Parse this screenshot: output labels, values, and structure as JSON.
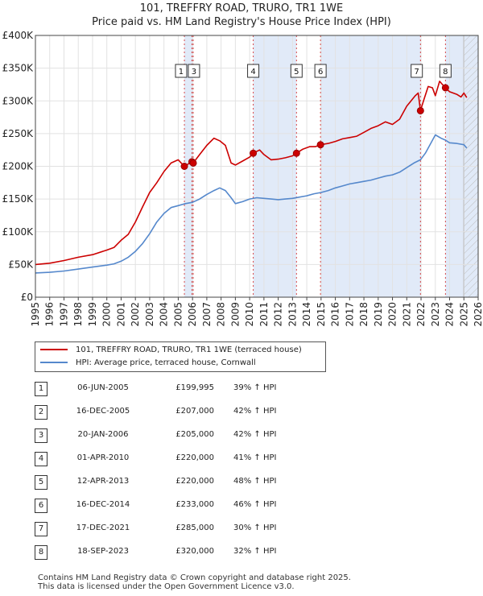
{
  "chart_data": {
    "type": "line",
    "title": "101, TREFFRY ROAD, TRURO, TR1 1WE",
    "subtitle": "Price paid vs. HM Land Registry's House Price Index (HPI)",
    "xlabel": "",
    "ylabel": "",
    "xlim": [
      1995,
      2026
    ],
    "ylim": [
      0,
      400000
    ],
    "yticks": [
      0,
      50000,
      100000,
      150000,
      200000,
      250000,
      300000,
      350000,
      400000
    ],
    "ytick_labels": [
      "£0",
      "£50K",
      "£100K",
      "£150K",
      "£200K",
      "£250K",
      "£300K",
      "£350K",
      "£400K"
    ],
    "xticks": [
      1995,
      1996,
      1997,
      1998,
      1999,
      2000,
      2001,
      2002,
      2003,
      2004,
      2005,
      2006,
      2007,
      2008,
      2009,
      2010,
      2011,
      2012,
      2013,
      2014,
      2015,
      2016,
      2017,
      2018,
      2019,
      2020,
      2021,
      2022,
      2023,
      2024,
      2025,
      2026
    ],
    "xtick_labels": [
      "1995",
      "1996",
      "1997",
      "1998",
      "1999",
      "2000",
      "2001",
      "2002",
      "2003",
      "2004",
      "2005",
      "2006",
      "2007",
      "2008",
      "2009",
      "2010",
      "2011",
      "2012",
      "2013",
      "2014",
      "2015",
      "2016",
      "2017",
      "2018",
      "2019",
      "2020",
      "2021",
      "2022",
      "2023",
      "2024",
      "2025",
      "2026"
    ],
    "grid": true,
    "shaded_periods": [
      [
        2005.43,
        2006.05
      ],
      [
        2010.25,
        2013.28
      ],
      [
        2014.96,
        2021.96
      ],
      [
        2023.71,
        2026.0
      ]
    ],
    "future_hatch_from": 2025.0,
    "series": [
      {
        "name": "101, TREFFRY ROAD, TRURO, TR1 1WE (terraced house)",
        "color": "#cc0000",
        "x": [
          1995.0,
          1996.0,
          1997.0,
          1998.0,
          1999.0,
          2000.0,
          2000.5,
          2001.0,
          2001.5,
          2002.0,
          2002.5,
          2003.0,
          2003.5,
          2004.0,
          2004.5,
          2005.0,
          2005.43,
          2005.96,
          2006.05,
          2006.5,
          2007.0,
          2007.5,
          2007.9,
          2008.3,
          2008.7,
          2009.0,
          2009.5,
          2010.0,
          2010.25,
          2010.7,
          2011.0,
          2011.5,
          2012.0,
          2012.5,
          2013.0,
          2013.28,
          2013.7,
          2014.2,
          2014.6,
          2014.96,
          2015.5,
          2016.0,
          2016.5,
          2017.0,
          2017.5,
          2018.0,
          2018.5,
          2019.0,
          2019.5,
          2020.0,
          2020.5,
          2021.0,
          2021.3,
          2021.6,
          2021.8,
          2021.96,
          2022.2,
          2022.5,
          2022.8,
          2023.0,
          2023.3,
          2023.5,
          2023.71,
          2024.0,
          2024.5,
          2024.8,
          2025.0,
          2025.2
        ],
        "values": [
          50000,
          52000,
          56000,
          61000,
          65000,
          72000,
          76000,
          87000,
          96000,
          115000,
          138000,
          160000,
          175000,
          192000,
          205000,
          210000,
          199995,
          207000,
          205000,
          218000,
          232000,
          243000,
          239000,
          232000,
          205000,
          202000,
          208000,
          214000,
          220000,
          225000,
          218000,
          210000,
          211000,
          213000,
          216000,
          220000,
          226000,
          230000,
          230000,
          233000,
          235000,
          238000,
          242000,
          244000,
          246000,
          252000,
          258000,
          262000,
          268000,
          264000,
          272000,
          292000,
          300000,
          308000,
          312000,
          285000,
          302000,
          322000,
          320000,
          308000,
          330000,
          325000,
          320000,
          314000,
          310000,
          306000,
          312000,
          305000
        ]
      },
      {
        "name": "HPI: Average price, terraced house, Cornwall",
        "color": "#5588cc",
        "x": [
          1995.0,
          1996.0,
          1997.0,
          1998.0,
          1999.0,
          2000.0,
          2000.5,
          2001.0,
          2001.5,
          2002.0,
          2002.5,
          2003.0,
          2003.5,
          2004.0,
          2004.5,
          2005.0,
          2005.5,
          2006.0,
          2006.5,
          2007.0,
          2007.5,
          2007.9,
          2008.3,
          2008.7,
          2009.0,
          2009.5,
          2010.0,
          2010.5,
          2011.0,
          2011.5,
          2012.0,
          2012.5,
          2013.0,
          2013.5,
          2014.0,
          2014.5,
          2015.0,
          2015.5,
          2016.0,
          2016.5,
          2017.0,
          2017.5,
          2018.0,
          2018.5,
          2019.0,
          2019.5,
          2020.0,
          2020.5,
          2021.0,
          2021.5,
          2021.96,
          2022.3,
          2022.7,
          2023.0,
          2023.4,
          2023.71,
          2024.0,
          2024.5,
          2025.0,
          2025.2
        ],
        "values": [
          37000,
          38000,
          40000,
          43000,
          46000,
          49000,
          51000,
          55000,
          61000,
          70000,
          82000,
          97000,
          115000,
          128000,
          137000,
          140000,
          143000,
          145000,
          150000,
          157000,
          163000,
          167000,
          163000,
          152000,
          143000,
          146000,
          150000,
          152000,
          151000,
          150000,
          149000,
          150000,
          151000,
          153000,
          155000,
          158000,
          160000,
          163000,
          167000,
          170000,
          173000,
          175000,
          177000,
          179000,
          182000,
          185000,
          187000,
          191000,
          198000,
          205000,
          210000,
          220000,
          236000,
          248000,
          243000,
          240000,
          236000,
          235000,
          233000,
          228000
        ]
      }
    ],
    "sales": [
      {
        "label": "1",
        "x": 2005.43,
        "value": 199995
      },
      {
        "label": "2",
        "x": 2005.96,
        "value": 207000
      },
      {
        "label": "3",
        "x": 2006.05,
        "value": 205000
      },
      {
        "label": "4",
        "x": 2010.25,
        "value": 220000
      },
      {
        "label": "5",
        "x": 2013.28,
        "value": 220000
      },
      {
        "label": "6",
        "x": 2014.96,
        "value": 233000
      },
      {
        "label": "7",
        "x": 2021.96,
        "value": 285000
      },
      {
        "label": "8",
        "x": 2023.71,
        "value": 320000
      }
    ],
    "box_labels": [
      {
        "label": "1",
        "x": 2005.2
      },
      {
        "label": "3",
        "x": 2006.1
      },
      {
        "label": "4",
        "x": 2010.25
      },
      {
        "label": "5",
        "x": 2013.28
      },
      {
        "label": "6",
        "x": 2014.96
      },
      {
        "label": "7",
        "x": 2021.7
      },
      {
        "label": "8",
        "x": 2023.71
      }
    ]
  },
  "legend": {
    "property_label": "101, TREFFRY ROAD, TRURO, TR1 1WE (terraced house)",
    "hpi_label": "HPI: Average price, terraced house, Cornwall"
  },
  "sales_table": [
    {
      "num": "1",
      "date": "06-JUN-2005",
      "price": "£199,995",
      "hpi": "39% ↑ HPI"
    },
    {
      "num": "2",
      "date": "16-DEC-2005",
      "price": "£207,000",
      "hpi": "42% ↑ HPI"
    },
    {
      "num": "3",
      "date": "20-JAN-2006",
      "price": "£205,000",
      "hpi": "42% ↑ HPI"
    },
    {
      "num": "4",
      "date": "01-APR-2010",
      "price": "£220,000",
      "hpi": "41% ↑ HPI"
    },
    {
      "num": "5",
      "date": "12-APR-2013",
      "price": "£220,000",
      "hpi": "48% ↑ HPI"
    },
    {
      "num": "6",
      "date": "16-DEC-2014",
      "price": "£233,000",
      "hpi": "46% ↑ HPI"
    },
    {
      "num": "7",
      "date": "17-DEC-2021",
      "price": "£285,000",
      "hpi": "30% ↑ HPI"
    },
    {
      "num": "8",
      "date": "18-SEP-2023",
      "price": "£320,000",
      "hpi": "32% ↑ HPI"
    }
  ],
  "footer": {
    "line1": "Contains HM Land Registry data © Crown copyright and database right 2025.",
    "line2": "This data is licensed under the Open Government Licence v3.0."
  }
}
